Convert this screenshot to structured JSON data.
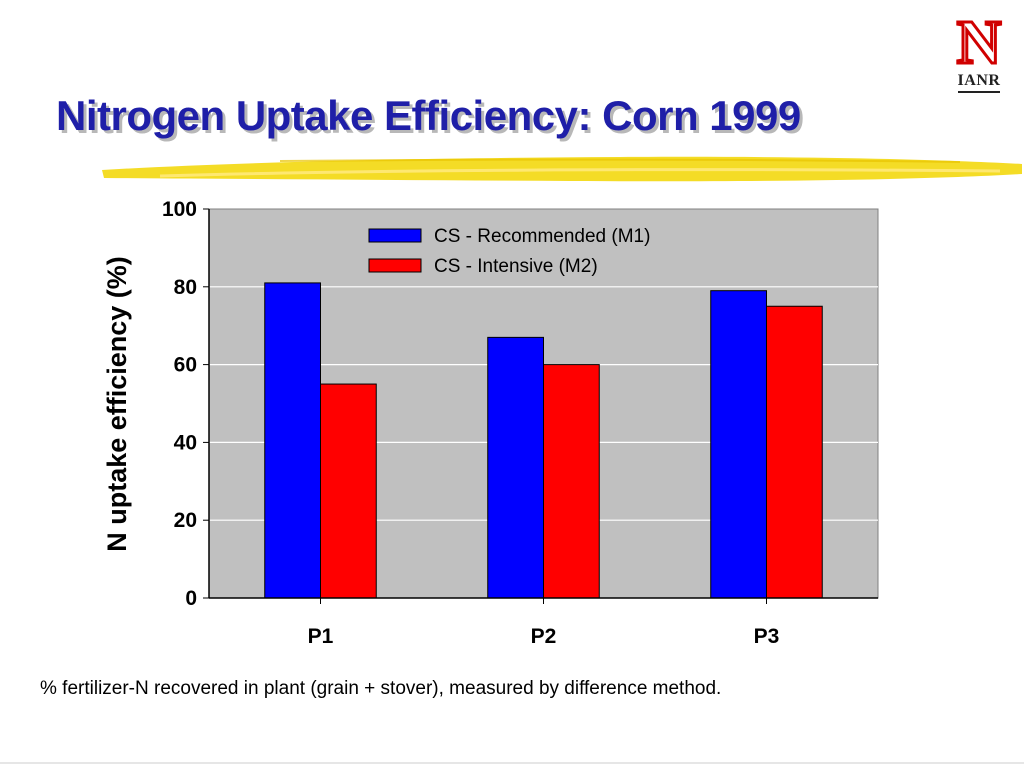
{
  "slide": {
    "title": "Nitrogen Uptake Efficiency: Corn 1999",
    "footnote": "% fertilizer-N recovered in plant (grain + stover), measured by difference method.",
    "logo": {
      "mark": "N",
      "text": "IANR",
      "color": "#d00000"
    },
    "title_color": "#1f1fa8",
    "highlighter_color": "#f2d600"
  },
  "chart_data": {
    "type": "bar",
    "categories": [
      "P1",
      "P2",
      "P3"
    ],
    "series": [
      {
        "name": "CS - Recommended (M1)",
        "values": [
          81,
          67,
          79
        ],
        "color": "#0000ff"
      },
      {
        "name": "CS - Intensive (M2)",
        "values": [
          55,
          60,
          75
        ],
        "color": "#ff0000"
      }
    ],
    "title": "",
    "xlabel": "",
    "ylabel": "N uptake efficiency (%)",
    "ylim": [
      0,
      100
    ],
    "yticks": [
      0,
      20,
      40,
      60,
      80,
      100
    ],
    "grid": true,
    "legend_position": "top-right",
    "plot_background": "#c0c0c0"
  }
}
